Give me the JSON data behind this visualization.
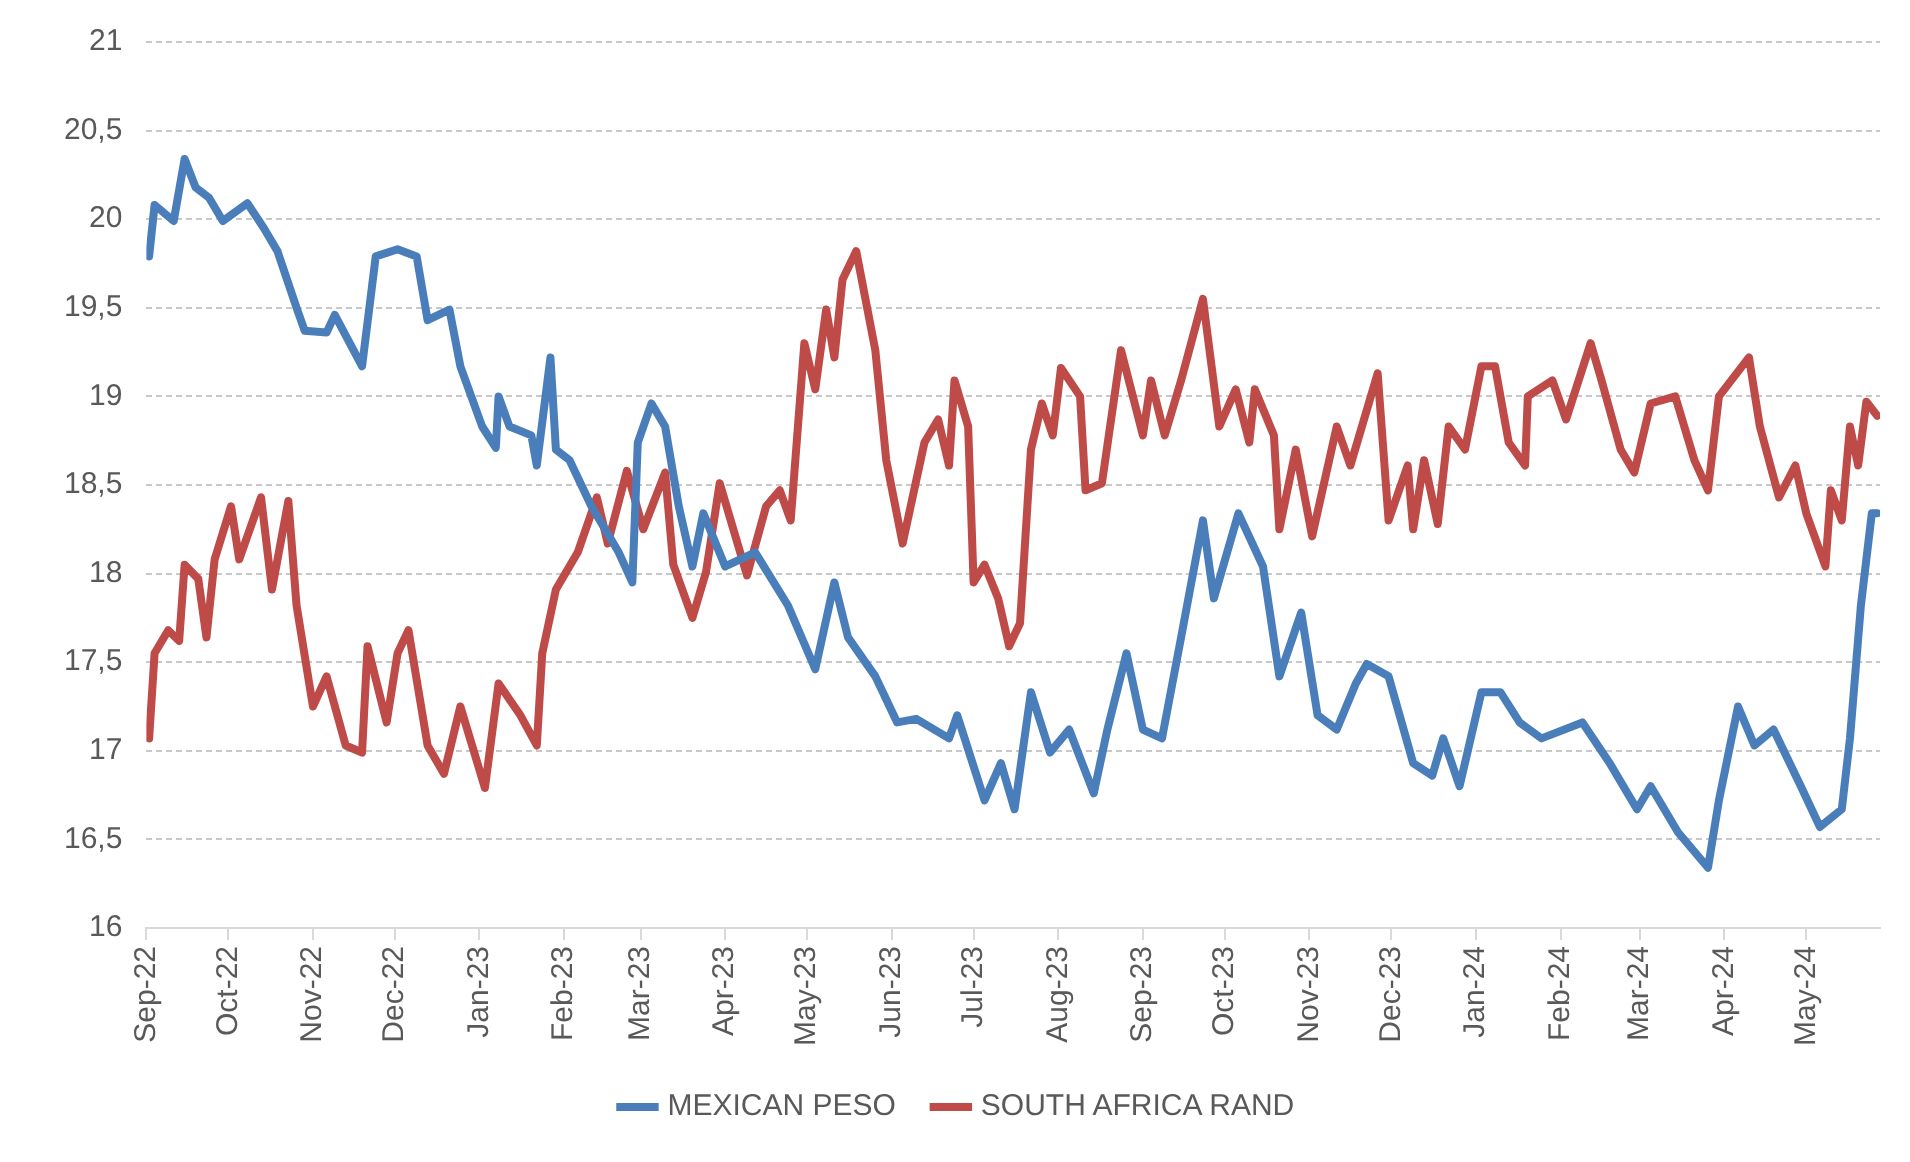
{
  "chart_data": {
    "type": "line",
    "xlim": [
      "2022-09-01",
      "2024-05-28"
    ],
    "ylim": [
      16,
      21
    ],
    "xticks": [
      {
        "value": "2022-09-01",
        "label": "Sep-22"
      },
      {
        "value": "2022-10-01",
        "label": "Oct-22"
      },
      {
        "value": "2022-11-01",
        "label": "Nov-22"
      },
      {
        "value": "2022-12-01",
        "label": "Dec-22"
      },
      {
        "value": "2023-01-01",
        "label": "Jan-23"
      },
      {
        "value": "2023-02-01",
        "label": "Feb-23"
      },
      {
        "value": "2023-03-01",
        "label": "Mar-23"
      },
      {
        "value": "2023-04-01",
        "label": "Apr-23"
      },
      {
        "value": "2023-05-01",
        "label": "May-23"
      },
      {
        "value": "2023-06-01",
        "label": "Jun-23"
      },
      {
        "value": "2023-07-01",
        "label": "Jul-23"
      },
      {
        "value": "2023-08-01",
        "label": "Aug-23"
      },
      {
        "value": "2023-09-01",
        "label": "Sep-23"
      },
      {
        "value": "2023-10-01",
        "label": "Oct-23"
      },
      {
        "value": "2023-11-01",
        "label": "Nov-23"
      },
      {
        "value": "2023-12-01",
        "label": "Dec-23"
      },
      {
        "value": "2024-01-01",
        "label": "Jan-24"
      },
      {
        "value": "2024-02-01",
        "label": "Feb-24"
      },
      {
        "value": "2024-03-01",
        "label": "Mar-24"
      },
      {
        "value": "2024-04-01",
        "label": "Apr-24"
      },
      {
        "value": "2024-05-01",
        "label": "May-24"
      }
    ],
    "yticks": [
      16,
      {
        "value": 16.5,
        "label": "16,5"
      },
      17,
      {
        "value": 17.5,
        "label": "17,5"
      },
      18,
      {
        "value": 18.5,
        "label": "18,5"
      },
      19,
      {
        "value": 19.5,
        "label": "19,5"
      },
      20,
      {
        "value": 20.5,
        "label": "20,5"
      },
      21
    ],
    "grid": "y",
    "legend": "bottom",
    "marker": "none",
    "line_style": "solid",
    "series": [
      {
        "name": "MEXICAN PESO",
        "color": "#4a7ebb",
        "x": [
          "2022-09-02",
          "2022-09-04",
          "2022-09-11",
          "2022-09-15",
          "2022-09-19",
          "2022-09-24",
          "2022-09-29",
          "2022-10-08",
          "2022-10-14",
          "2022-10-19",
          "2022-10-26",
          "2022-10-29",
          "2022-11-06",
          "2022-11-09",
          "2022-11-19",
          "2022-11-24",
          "2022-12-02",
          "2022-12-09",
          "2022-12-13",
          "2022-12-21",
          "2022-12-25",
          "2023-01-02",
          "2023-01-07",
          "2023-01-08",
          "2023-01-12",
          "2023-01-20",
          "2023-01-22",
          "2023-01-27",
          "2023-01-29",
          "2023-02-03",
          "2023-02-11",
          "2023-02-21",
          "2023-02-26",
          "2023-02-28",
          "2023-03-05",
          "2023-03-10",
          "2023-03-15",
          "2023-03-20",
          "2023-03-24",
          "2023-04-01",
          "2023-04-12",
          "2023-04-24",
          "2023-05-04",
          "2023-05-11",
          "2023-05-16",
          "2023-05-26",
          "2023-06-03",
          "2023-06-10",
          "2023-06-22",
          "2023-06-25",
          "2023-07-05",
          "2023-07-11",
          "2023-07-16",
          "2023-07-22",
          "2023-07-29",
          "2023-08-05",
          "2023-08-14",
          "2023-08-19",
          "2023-08-26",
          "2023-09-01",
          "2023-09-08",
          "2023-09-15",
          "2023-09-23",
          "2023-09-27",
          "2023-10-06",
          "2023-10-15",
          "2023-10-21",
          "2023-10-29",
          "2023-11-04",
          "2023-11-11",
          "2023-11-18",
          "2023-11-22",
          "2023-11-30",
          "2023-12-09",
          "2023-12-16",
          "2023-12-20",
          "2023-12-26",
          "2024-01-03",
          "2024-01-10",
          "2024-01-17",
          "2024-01-25",
          "2024-02-09",
          "2024-02-19",
          "2024-02-29",
          "2024-03-05",
          "2024-03-15",
          "2024-03-26",
          "2024-03-30",
          "2024-04-06",
          "2024-04-12",
          "2024-04-19",
          "2024-04-29",
          "2024-05-06",
          "2024-05-14",
          "2024-05-17",
          "2024-05-21",
          "2024-05-25",
          "2024-05-27"
        ],
        "values": [
          19.79,
          20.08,
          19.99,
          20.34,
          20.18,
          20.12,
          19.99,
          20.09,
          19.95,
          19.82,
          19.5,
          19.37,
          19.36,
          19.46,
          19.17,
          19.79,
          19.83,
          19.79,
          19.43,
          19.49,
          19.17,
          18.83,
          18.71,
          19.0,
          18.83,
          18.78,
          18.61,
          19.22,
          18.7,
          18.64,
          18.38,
          18.12,
          17.95,
          18.74,
          18.96,
          18.83,
          18.38,
          18.04,
          18.34,
          18.04,
          18.12,
          17.82,
          17.46,
          17.95,
          17.64,
          17.42,
          17.16,
          17.18,
          17.07,
          17.2,
          16.72,
          16.93,
          16.67,
          17.33,
          16.99,
          17.12,
          16.76,
          17.12,
          17.55,
          17.12,
          17.07,
          17.64,
          18.3,
          17.86,
          18.34,
          18.04,
          17.42,
          17.78,
          17.2,
          17.12,
          17.38,
          17.49,
          17.42,
          16.93,
          16.86,
          17.07,
          16.8,
          17.33,
          17.33,
          17.16,
          17.07,
          17.16,
          16.93,
          16.67,
          16.8,
          16.54,
          16.34,
          16.72,
          17.25,
          17.03,
          17.12,
          16.8,
          16.57,
          16.67,
          17.07,
          17.82,
          18.34,
          18.34
        ]
      },
      {
        "name": "SOUTH AFRICA RAND",
        "color": "#be4b48",
        "x": [
          "2022-09-02",
          "2022-09-04",
          "2022-09-09",
          "2022-09-13",
          "2022-09-15",
          "2022-09-20",
          "2022-09-23",
          "2022-09-26",
          "2022-10-02",
          "2022-10-05",
          "2022-10-13",
          "2022-10-17",
          "2022-10-23",
          "2022-10-26",
          "2022-11-01",
          "2022-11-06",
          "2022-11-13",
          "2022-11-19",
          "2022-11-21",
          "2022-11-28",
          "2022-12-02",
          "2022-12-06",
          "2022-12-13",
          "2022-12-19",
          "2022-12-25",
          "2023-01-03",
          "2023-01-08",
          "2023-01-16",
          "2023-01-22",
          "2023-01-24",
          "2023-01-29",
          "2023-02-06",
          "2023-02-13",
          "2023-02-17",
          "2023-02-24",
          "2023-03-02",
          "2023-03-10",
          "2023-03-13",
          "2023-03-20",
          "2023-03-25",
          "2023-03-30",
          "2023-04-04",
          "2023-04-09",
          "2023-04-16",
          "2023-04-21",
          "2023-04-25",
          "2023-04-30",
          "2023-05-04",
          "2023-05-08",
          "2023-05-11",
          "2023-05-14",
          "2023-05-19",
          "2023-05-26",
          "2023-05-30",
          "2023-06-05",
          "2023-06-13",
          "2023-06-18",
          "2023-06-22",
          "2023-06-24",
          "2023-06-29",
          "2023-07-01",
          "2023-07-05",
          "2023-07-10",
          "2023-07-14",
          "2023-07-18",
          "2023-07-22",
          "2023-07-26",
          "2023-07-30",
          "2023-08-02",
          "2023-08-09",
          "2023-08-11",
          "2023-08-17",
          "2023-08-24",
          "2023-09-01",
          "2023-09-04",
          "2023-09-09",
          "2023-09-15",
          "2023-09-23",
          "2023-09-29",
          "2023-10-05",
          "2023-10-10",
          "2023-10-12",
          "2023-10-19",
          "2023-10-21",
          "2023-10-27",
          "2023-11-02",
          "2023-11-11",
          "2023-11-16",
          "2023-11-26",
          "2023-11-30",
          "2023-12-07",
          "2023-12-09",
          "2023-12-13",
          "2023-12-18",
          "2023-12-22",
          "2023-12-28",
          "2024-01-03",
          "2024-01-08",
          "2024-01-13",
          "2024-01-19",
          "2024-01-20",
          "2024-01-29",
          "2024-02-03",
          "2024-02-12",
          "2024-02-16",
          "2024-02-23",
          "2024-02-28",
          "2024-03-05",
          "2024-03-14",
          "2024-03-21",
          "2024-03-26",
          "2024-03-30",
          "2024-04-10",
          "2024-04-14",
          "2024-04-21",
          "2024-04-27",
          "2024-05-01",
          "2024-05-08",
          "2024-05-10",
          "2024-05-14",
          "2024-05-17",
          "2024-05-20",
          "2024-05-23",
          "2024-05-27"
        ],
        "values": [
          17.07,
          17.55,
          17.68,
          17.62,
          18.05,
          17.97,
          17.64,
          18.08,
          18.38,
          18.08,
          18.43,
          17.91,
          18.41,
          17.82,
          17.25,
          17.42,
          17.03,
          16.99,
          17.59,
          17.16,
          17.55,
          17.68,
          17.03,
          16.87,
          17.25,
          16.79,
          17.38,
          17.2,
          17.03,
          17.55,
          17.91,
          18.12,
          18.43,
          18.17,
          18.58,
          18.25,
          18.57,
          18.05,
          17.75,
          18.01,
          18.51,
          18.25,
          17.99,
          18.38,
          18.47,
          18.3,
          19.3,
          19.04,
          19.49,
          19.22,
          19.66,
          19.82,
          19.26,
          18.64,
          18.17,
          18.74,
          18.87,
          18.61,
          19.09,
          18.83,
          17.95,
          18.05,
          17.86,
          17.59,
          17.72,
          18.7,
          18.96,
          18.78,
          19.16,
          19.0,
          18.47,
          18.51,
          19.26,
          18.78,
          19.09,
          18.78,
          19.09,
          19.55,
          18.83,
          19.04,
          18.74,
          19.04,
          18.78,
          18.25,
          18.7,
          18.21,
          18.83,
          18.61,
          19.13,
          18.3,
          18.61,
          18.25,
          18.64,
          18.28,
          18.83,
          18.7,
          19.17,
          19.17,
          18.74,
          18.61,
          19.0,
          19.09,
          18.87,
          19.3,
          19.09,
          18.7,
          18.57,
          18.96,
          19.0,
          18.64,
          18.47,
          19.0,
          19.22,
          18.83,
          18.43,
          18.61,
          18.34,
          18.04,
          18.47,
          18.3,
          18.83,
          18.61,
          18.97,
          18.89
        ]
      }
    ]
  }
}
